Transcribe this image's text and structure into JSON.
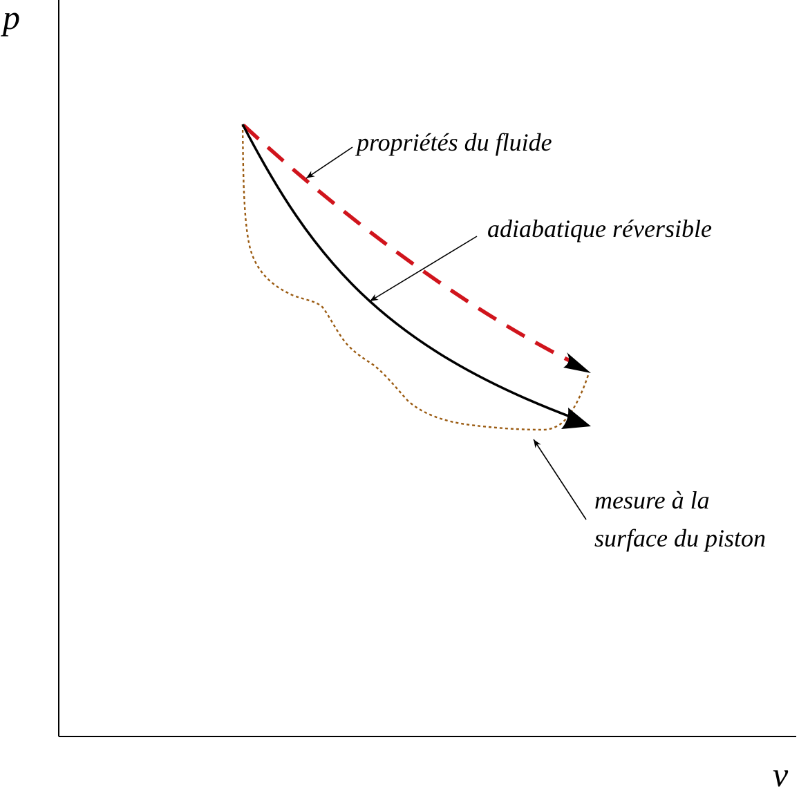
{
  "axes": {
    "y_label": "p",
    "x_label": "v"
  },
  "labels": {
    "fluid_properties": "propriétés du fluide",
    "reversible_adiabatic": "adiabatique réversible",
    "piston_measure_line1": "mesure à la",
    "piston_measure_line2": "surface du piston"
  },
  "colors": {
    "axis": "#000000",
    "fluid_curve": "#d0141c",
    "adiabatic_curve": "#000000",
    "piston_curve": "#9a5a10",
    "pointer": "#000000"
  }
}
